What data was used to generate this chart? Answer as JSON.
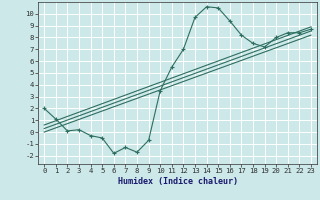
{
  "title": "",
  "xlabel": "Humidex (Indice chaleur)",
  "bg_color": "#cce8e8",
  "grid_color": "#ffffff",
  "line_color": "#2e6e60",
  "xlim": [
    -0.5,
    23.5
  ],
  "ylim": [
    -2.7,
    11.0
  ],
  "xticks": [
    0,
    1,
    2,
    3,
    4,
    5,
    6,
    7,
    8,
    9,
    10,
    11,
    12,
    13,
    14,
    15,
    16,
    17,
    18,
    19,
    20,
    21,
    22,
    23
  ],
  "yticks": [
    -2,
    -1,
    0,
    1,
    2,
    3,
    4,
    5,
    6,
    7,
    8,
    9,
    10
  ],
  "curve1_x": [
    0,
    1,
    2,
    3,
    4,
    5,
    6,
    7,
    8,
    9,
    10,
    11,
    12,
    13,
    14,
    15,
    16,
    17,
    18,
    19,
    20,
    21,
    22,
    23
  ],
  "curve1_y": [
    2.0,
    1.1,
    0.1,
    0.2,
    -0.3,
    -0.5,
    -1.8,
    -1.3,
    -1.7,
    -0.7,
    3.5,
    5.5,
    7.0,
    9.7,
    10.6,
    10.5,
    9.4,
    8.2,
    7.5,
    7.2,
    8.0,
    8.4,
    8.4,
    8.7
  ],
  "line1_x": [
    0,
    23
  ],
  "line1_y": [
    0.3,
    8.55
  ],
  "line2_x": [
    0,
    23
  ],
  "line2_y": [
    0.0,
    8.2
  ],
  "line3_x": [
    0,
    23
  ],
  "line3_y": [
    0.6,
    8.9
  ],
  "xlabel_fontsize": 6.0,
  "tick_fontsize": 5.2,
  "line_lw": 0.8,
  "marker_size": 3.0
}
